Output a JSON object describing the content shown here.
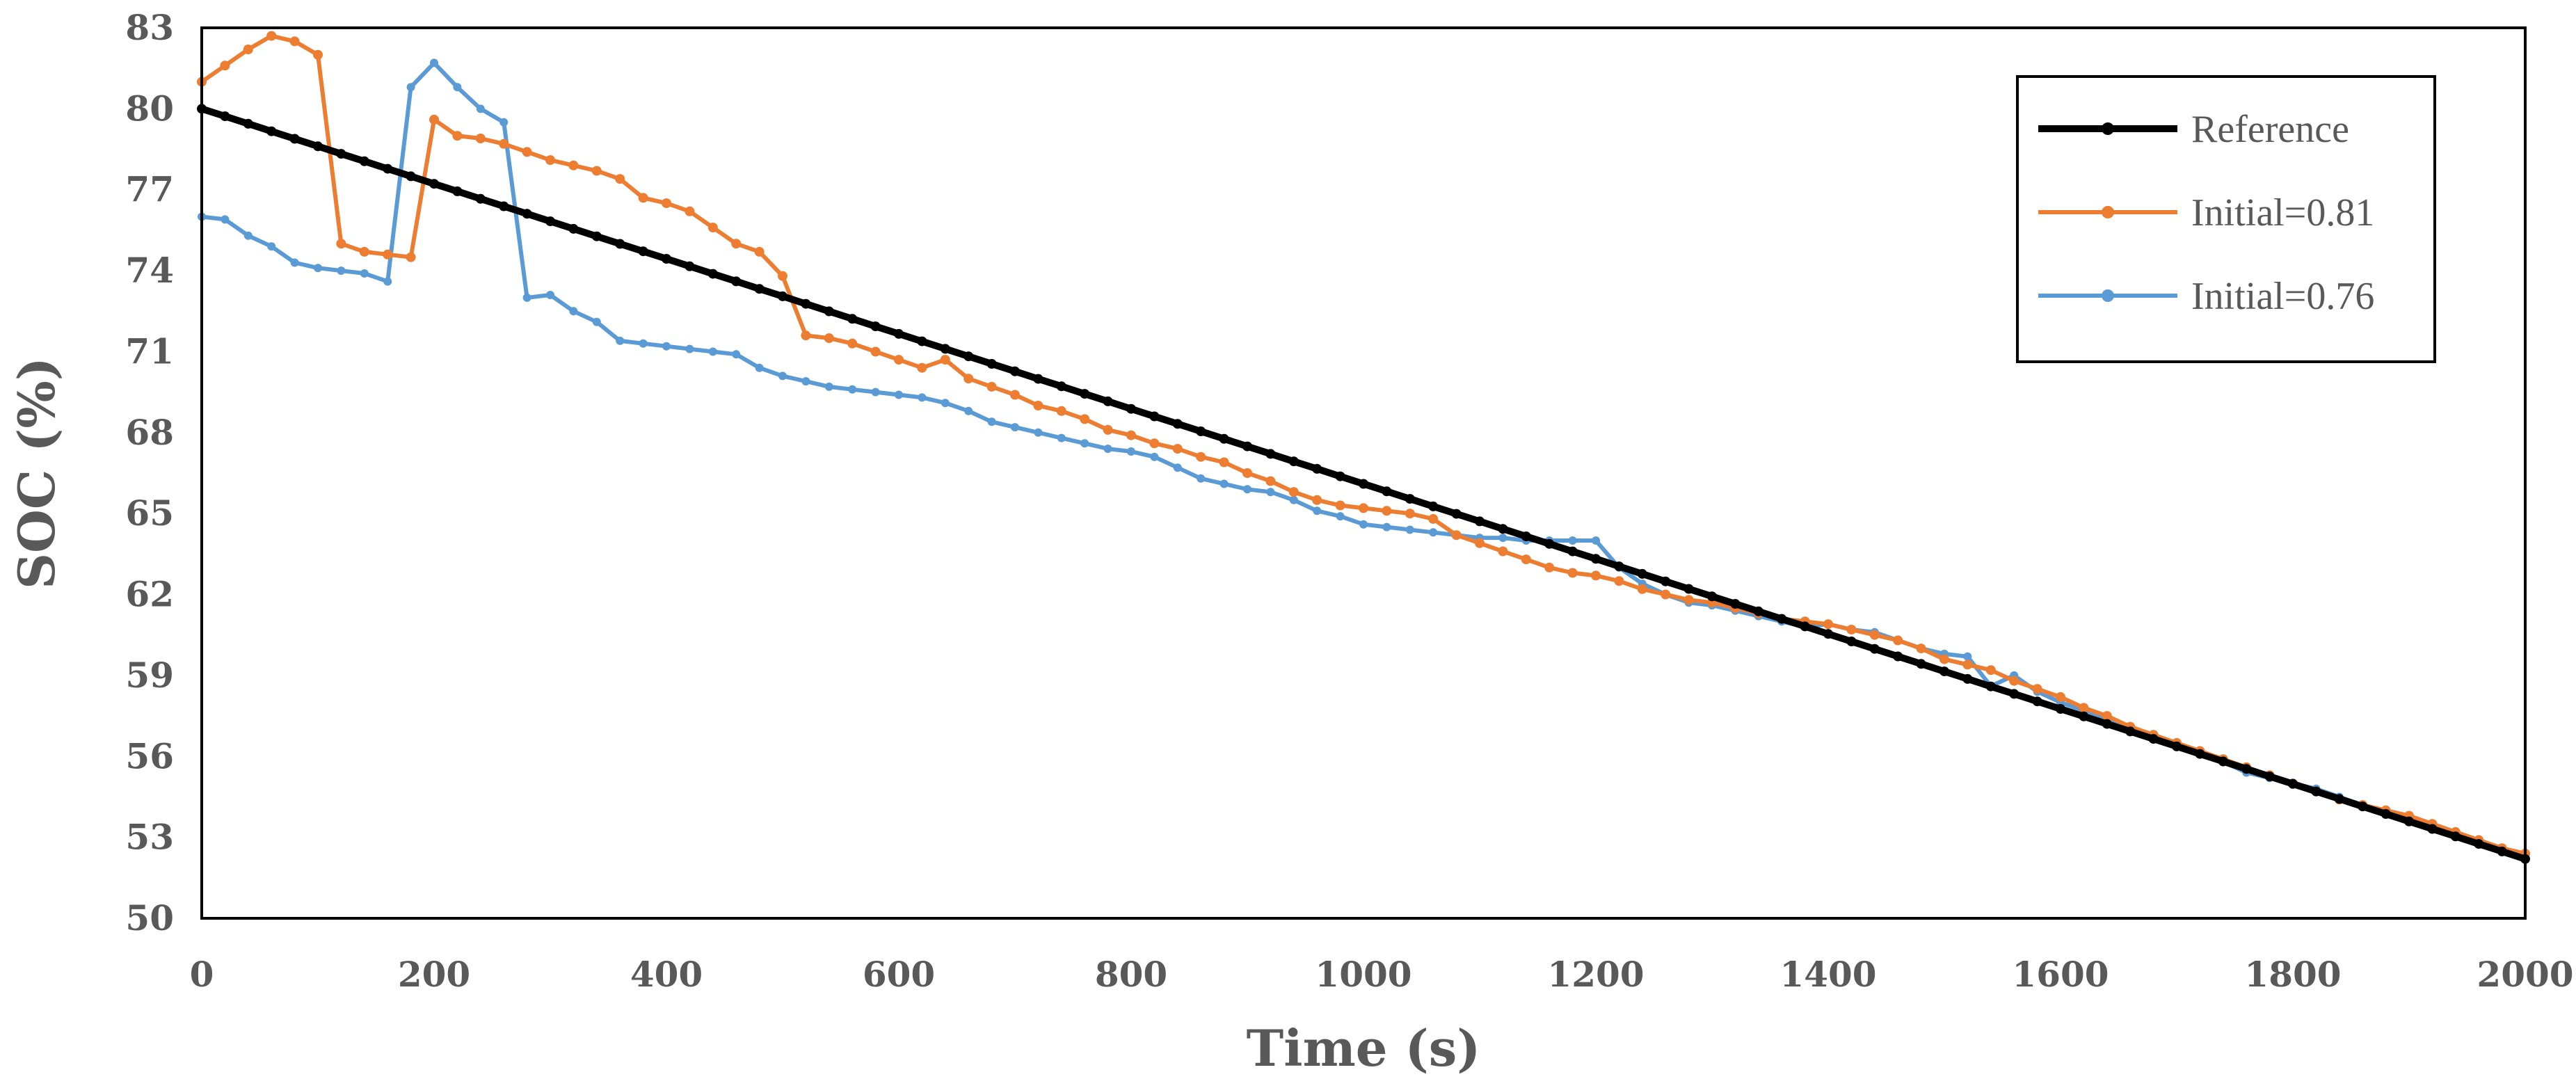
{
  "chart_data": {
    "type": "line",
    "title": "",
    "xlabel": "Time (s)",
    "ylabel": "SOC (%)",
    "xlim": [
      0,
      2000
    ],
    "ylim": [
      50,
      83
    ],
    "xticks": [
      0,
      200,
      400,
      600,
      800,
      1000,
      1200,
      1400,
      1600,
      1800,
      2000
    ],
    "yticks": [
      50,
      53,
      56,
      59,
      62,
      65,
      68,
      71,
      74,
      77,
      80,
      83
    ],
    "legend_position": "top-right",
    "grid": false,
    "series": [
      {
        "name": "Reference",
        "color": "#000000",
        "x": [
          0,
          2000
        ],
        "y": [
          80.0,
          52.2
        ],
        "sample_step": 20
      },
      {
        "name": "Initial=0.81",
        "color": "#ED7D31",
        "x": [
          0,
          20,
          40,
          60,
          80,
          100,
          120,
          140,
          160,
          180,
          200,
          220,
          240,
          260,
          280,
          300,
          320,
          340,
          360,
          380,
          400,
          420,
          440,
          460,
          480,
          500,
          520,
          540,
          560,
          580,
          600,
          620,
          640,
          660,
          680,
          700,
          720,
          740,
          760,
          780,
          800,
          820,
          840,
          860,
          880,
          900,
          920,
          940,
          960,
          980,
          1000,
          1020,
          1040,
          1060,
          1080,
          1100,
          1120,
          1140,
          1160,
          1180,
          1200,
          1220,
          1240,
          1260,
          1280,
          1300,
          1320,
          1340,
          1360,
          1380,
          1400,
          1420,
          1440,
          1460,
          1480,
          1500,
          1520,
          1540,
          1560,
          1580,
          1600,
          1620,
          1640,
          1660,
          1680,
          1700,
          1720,
          1740,
          1760,
          1780,
          1800,
          1820,
          1840,
          1860,
          1880,
          1900,
          1920,
          1940,
          1960,
          1980,
          2000
        ],
        "y": [
          81.0,
          81.6,
          82.2,
          82.7,
          82.5,
          82.0,
          75.0,
          74.7,
          74.6,
          74.5,
          79.6,
          79.0,
          78.9,
          78.7,
          78.4,
          78.1,
          77.9,
          77.7,
          77.4,
          76.7,
          76.5,
          76.2,
          75.6,
          75.0,
          74.7,
          73.8,
          71.6,
          71.5,
          71.3,
          71.0,
          70.7,
          70.4,
          70.7,
          70.0,
          69.7,
          69.4,
          69.0,
          68.8,
          68.5,
          68.1,
          67.9,
          67.6,
          67.4,
          67.1,
          66.9,
          66.5,
          66.2,
          65.8,
          65.5,
          65.3,
          65.2,
          65.1,
          65.0,
          64.8,
          64.2,
          63.9,
          63.6,
          63.3,
          63.0,
          62.8,
          62.7,
          62.5,
          62.2,
          62.0,
          61.8,
          61.7,
          61.5,
          61.3,
          61.1,
          61.0,
          60.9,
          60.7,
          60.5,
          60.3,
          60.0,
          59.6,
          59.4,
          59.2,
          58.8,
          58.5,
          58.2,
          57.8,
          57.5,
          57.1,
          56.8,
          56.5,
          56.2,
          55.9,
          55.6,
          55.3,
          55.0,
          54.7,
          54.4,
          54.2,
          54.0,
          53.8,
          53.5,
          53.2,
          52.9,
          52.6,
          52.4
        ]
      },
      {
        "name": "Initial=0.76",
        "color": "#5B9BD5",
        "x": [
          0,
          20,
          40,
          60,
          80,
          100,
          120,
          140,
          160,
          180,
          200,
          220,
          240,
          260,
          280,
          300,
          320,
          340,
          360,
          380,
          400,
          420,
          440,
          460,
          480,
          500,
          520,
          540,
          560,
          580,
          600,
          620,
          640,
          660,
          680,
          700,
          720,
          740,
          760,
          780,
          800,
          820,
          840,
          860,
          880,
          900,
          920,
          940,
          960,
          980,
          1000,
          1020,
          1040,
          1060,
          1080,
          1100,
          1120,
          1140,
          1160,
          1180,
          1200,
          1220,
          1240,
          1260,
          1280,
          1300,
          1320,
          1340,
          1360,
          1380,
          1400,
          1420,
          1440,
          1460,
          1480,
          1500,
          1520,
          1540,
          1560,
          1580,
          1600,
          1620,
          1640,
          1660,
          1680,
          1700,
          1720,
          1740,
          1760,
          1780,
          1800,
          1820,
          1840,
          1860,
          1880,
          1900,
          1920,
          1940,
          1960,
          1980,
          2000
        ],
        "y": [
          76.0,
          75.9,
          75.3,
          74.9,
          74.3,
          74.1,
          74.0,
          73.9,
          73.6,
          80.8,
          81.7,
          80.8,
          80.0,
          79.5,
          73.0,
          73.1,
          72.5,
          72.1,
          71.4,
          71.3,
          71.2,
          71.1,
          71.0,
          70.9,
          70.4,
          70.1,
          69.9,
          69.7,
          69.6,
          69.5,
          69.4,
          69.3,
          69.1,
          68.8,
          68.4,
          68.2,
          68.0,
          67.8,
          67.6,
          67.4,
          67.3,
          67.1,
          66.7,
          66.3,
          66.1,
          65.9,
          65.8,
          65.5,
          65.1,
          64.9,
          64.6,
          64.5,
          64.4,
          64.3,
          64.2,
          64.1,
          64.1,
          64.0,
          64.0,
          64.0,
          64.0,
          63.0,
          62.4,
          62.0,
          61.7,
          61.6,
          61.4,
          61.2,
          61.0,
          60.8,
          60.9,
          60.7,
          60.6,
          60.3,
          60.0,
          59.8,
          59.7,
          58.6,
          59.0,
          58.4,
          58.0,
          57.7,
          57.4,
          57.0,
          56.7,
          56.4,
          56.1,
          55.8,
          55.4,
          55.2,
          55.0,
          54.8,
          54.5,
          54.2,
          53.9,
          53.7,
          53.4,
          53.1,
          52.8,
          52.5,
          52.3
        ]
      }
    ]
  }
}
